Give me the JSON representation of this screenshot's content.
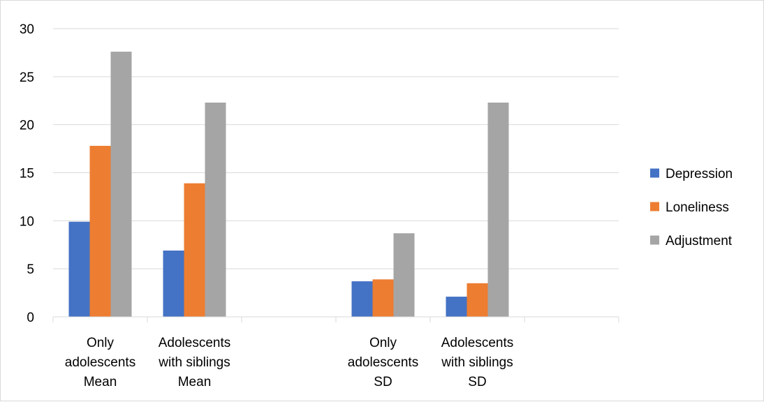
{
  "chart_data": {
    "type": "bar",
    "categories": [
      [
        "Only",
        "adolescents",
        "Mean"
      ],
      [
        "Adolescents",
        "with siblings",
        "Mean"
      ],
      [],
      [
        "Only",
        "adolescents",
        "SD"
      ],
      [
        "Adolescents",
        "with siblings",
        "SD"
      ],
      []
    ],
    "series": [
      {
        "name": "Depression",
        "color": "#4472c4",
        "values": [
          9.9,
          6.9,
          null,
          3.7,
          2.1,
          null
        ]
      },
      {
        "name": "Loneliness",
        "color": "#ed7d31",
        "values": [
          17.8,
          13.9,
          null,
          3.9,
          3.5,
          null
        ]
      },
      {
        "name": "Adjustment",
        "color": "#a5a5a5",
        "values": [
          27.6,
          22.3,
          null,
          8.7,
          22.3,
          null
        ]
      }
    ],
    "ylim": [
      0,
      30
    ],
    "yticks": [
      0,
      5,
      10,
      15,
      20,
      25,
      30
    ],
    "grid": true,
    "legend_position": "right",
    "title": "",
    "xlabel": "",
    "ylabel": ""
  }
}
